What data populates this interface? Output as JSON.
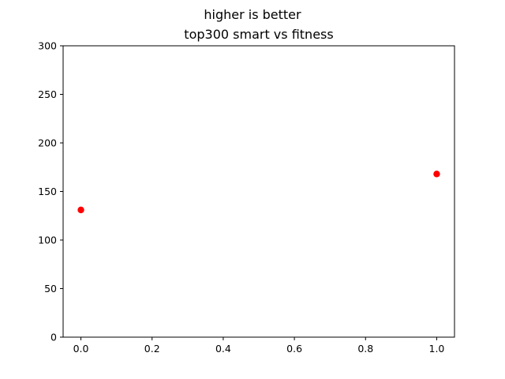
{
  "chart_data": {
    "type": "scatter",
    "suptitle": "higher is better",
    "title": "top300 smart vs fitness",
    "xlabel": "",
    "ylabel": "",
    "x": [
      0.0,
      1.0
    ],
    "y": [
      131,
      168
    ],
    "xlim": [
      -0.05,
      1.05
    ],
    "ylim": [
      0,
      300
    ],
    "xticks": [
      0.0,
      0.2,
      0.4,
      0.6,
      0.8,
      1.0
    ],
    "xtick_labels": [
      "0.0",
      "0.2",
      "0.4",
      "0.6",
      "0.8",
      "1.0"
    ],
    "yticks": [
      0,
      50,
      100,
      150,
      200,
      250,
      300
    ],
    "ytick_labels": [
      "0",
      "50",
      "100",
      "150",
      "200",
      "250",
      "300"
    ],
    "grid": false,
    "marker_color": "#ff0000"
  }
}
